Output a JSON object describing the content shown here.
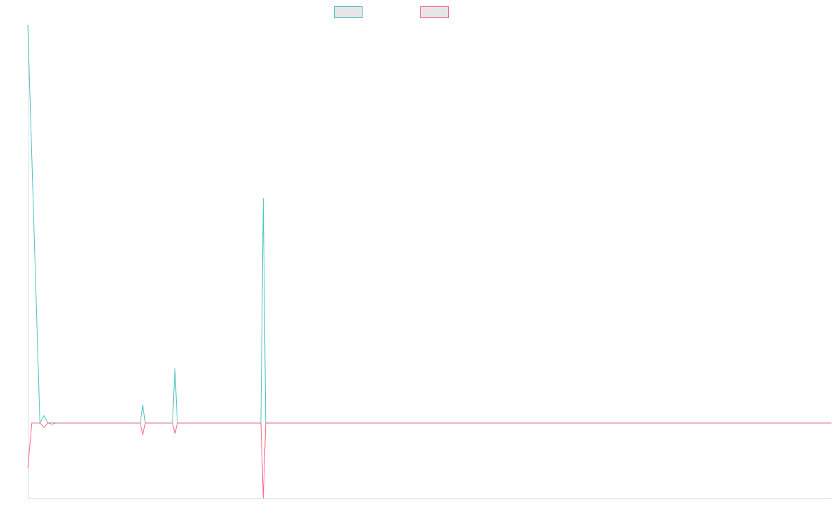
{
  "chart_data": {
    "type": "line",
    "title": "",
    "xlabel": "",
    "ylabel": "",
    "grid": false,
    "legend_position": "top",
    "ylim": [
      -35,
      185
    ],
    "x_count": 200,
    "series": [
      {
        "color": "#4bc0c0",
        "points": [
          {
            "x": 0,
            "y": 185
          },
          {
            "x": 3,
            "y": 0
          },
          {
            "x": 4,
            "y": 3.5
          },
          {
            "x": 5,
            "y": 0
          },
          {
            "x": 6,
            "y": 0.5
          },
          {
            "x": 7,
            "y": 0
          },
          {
            "x": 28,
            "y": 0
          },
          {
            "x": 28.6,
            "y": 8.5
          },
          {
            "x": 29.2,
            "y": 0
          },
          {
            "x": 36,
            "y": 0
          },
          {
            "x": 36.6,
            "y": 25.5
          },
          {
            "x": 37.2,
            "y": 0
          },
          {
            "x": 58,
            "y": 0
          },
          {
            "x": 58.6,
            "y": 104.5
          },
          {
            "x": 59.2,
            "y": 0
          },
          {
            "x": 200,
            "y": 0
          }
        ]
      },
      {
        "color": "#ff6384",
        "points": [
          {
            "x": 0,
            "y": -21
          },
          {
            "x": 1,
            "y": 0
          },
          {
            "x": 3,
            "y": 0
          },
          {
            "x": 4,
            "y": -2
          },
          {
            "x": 5,
            "y": 0
          },
          {
            "x": 6,
            "y": -0.5
          },
          {
            "x": 7,
            "y": 0
          },
          {
            "x": 28,
            "y": 0
          },
          {
            "x": 28.6,
            "y": -5.5
          },
          {
            "x": 29.2,
            "y": 0
          },
          {
            "x": 36,
            "y": 0
          },
          {
            "x": 36.6,
            "y": -5
          },
          {
            "x": 37.2,
            "y": 0
          },
          {
            "x": 58,
            "y": 0
          },
          {
            "x": 58.6,
            "y": -35
          },
          {
            "x": 59.2,
            "y": 0
          },
          {
            "x": 200,
            "y": 0
          }
        ]
      }
    ]
  }
}
